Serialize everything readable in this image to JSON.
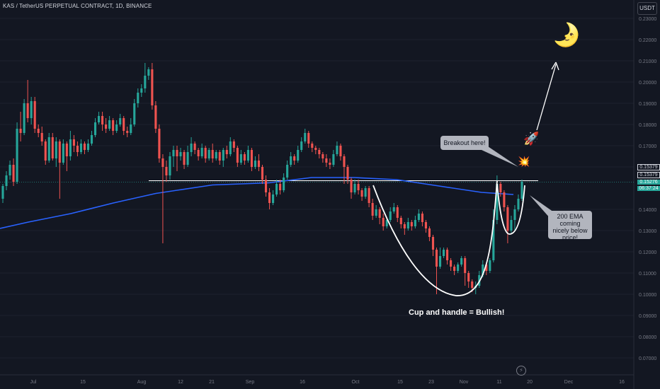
{
  "header": {
    "symbol_line": "KAS / TetherUS PERPETUAL CONTRACT, 1D, BINANCE",
    "currency": "USDT"
  },
  "chart_data": {
    "type": "candlestick",
    "x_axis_labels": [
      "Jul",
      "15",
      "Aug",
      "12",
      "21",
      "Sep",
      "16",
      "Oct",
      "15",
      "23",
      "Nov",
      "11",
      "20",
      "Dec",
      "16"
    ],
    "y_tick_labels": [
      "0.23000",
      "0.22000",
      "0.21000",
      "0.20000",
      "0.19000",
      "0.18000",
      "0.17000",
      "0.16000",
      "0.14000",
      "0.13000",
      "0.12000",
      "0.11000",
      "0.10000",
      "0.09000",
      "0.08000",
      "0.07000"
    ],
    "ylim": [
      0.066,
      0.24
    ],
    "price_labels": {
      "line_high": "0.15379",
      "line_low": "0.15379",
      "last_price": "0.15276",
      "countdown": "06:37:24"
    },
    "horizontal_level": 0.1535,
    "candles": [
      [
        0.145,
        0.151,
        0.143,
        0.152
      ],
      [
        0.151,
        0.156,
        0.149,
        0.158
      ],
      [
        0.156,
        0.161,
        0.154,
        0.163
      ],
      [
        0.161,
        0.153,
        0.151,
        0.164
      ],
      [
        0.153,
        0.178,
        0.152,
        0.181
      ],
      [
        0.178,
        0.176,
        0.172,
        0.186
      ],
      [
        0.176,
        0.19,
        0.175,
        0.192
      ],
      [
        0.19,
        0.183,
        0.181,
        0.201
      ],
      [
        0.183,
        0.191,
        0.18,
        0.193
      ],
      [
        0.191,
        0.178,
        0.176,
        0.193
      ],
      [
        0.178,
        0.176,
        0.174,
        0.18
      ],
      [
        0.176,
        0.172,
        0.17,
        0.179
      ],
      [
        0.172,
        0.163,
        0.161,
        0.173
      ],
      [
        0.163,
        0.174,
        0.162,
        0.176
      ],
      [
        0.174,
        0.164,
        0.163,
        0.176
      ],
      [
        0.164,
        0.172,
        0.16,
        0.174
      ],
      [
        0.172,
        0.162,
        0.145,
        0.173
      ],
      [
        0.162,
        0.171,
        0.161,
        0.173
      ],
      [
        0.171,
        0.165,
        0.158,
        0.172
      ],
      [
        0.165,
        0.173,
        0.163,
        0.177
      ],
      [
        0.173,
        0.17,
        0.167,
        0.175
      ],
      [
        0.17,
        0.167,
        0.165,
        0.172
      ],
      [
        0.167,
        0.171,
        0.166,
        0.173
      ],
      [
        0.171,
        0.168,
        0.166,
        0.172
      ],
      [
        0.168,
        0.171,
        0.167,
        0.173
      ],
      [
        0.171,
        0.175,
        0.17,
        0.177
      ],
      [
        0.175,
        0.181,
        0.174,
        0.183
      ],
      [
        0.181,
        0.184,
        0.18,
        0.186
      ],
      [
        0.184,
        0.18,
        0.177,
        0.186
      ],
      [
        0.18,
        0.178,
        0.176,
        0.183
      ],
      [
        0.178,
        0.182,
        0.177,
        0.184
      ],
      [
        0.182,
        0.177,
        0.175,
        0.183
      ],
      [
        0.177,
        0.18,
        0.176,
        0.182
      ],
      [
        0.18,
        0.183,
        0.179,
        0.185
      ],
      [
        0.183,
        0.177,
        0.175,
        0.184
      ],
      [
        0.177,
        0.176,
        0.174,
        0.179
      ],
      [
        0.176,
        0.18,
        0.175,
        0.183
      ],
      [
        0.18,
        0.19,
        0.179,
        0.192
      ],
      [
        0.19,
        0.195,
        0.188,
        0.197
      ],
      [
        0.195,
        0.197,
        0.193,
        0.199
      ],
      [
        0.197,
        0.203,
        0.195,
        0.209
      ],
      [
        0.203,
        0.206,
        0.201,
        0.207
      ],
      [
        0.206,
        0.189,
        0.187,
        0.209
      ],
      [
        0.189,
        0.178,
        0.176,
        0.191
      ],
      [
        0.178,
        0.164,
        0.162,
        0.18
      ],
      [
        0.164,
        0.16,
        0.124,
        0.166
      ],
      [
        0.16,
        0.156,
        0.153,
        0.163
      ],
      [
        0.156,
        0.165,
        0.154,
        0.167
      ],
      [
        0.165,
        0.168,
        0.16,
        0.17
      ],
      [
        0.168,
        0.165,
        0.158,
        0.17
      ],
      [
        0.165,
        0.167,
        0.163,
        0.169
      ],
      [
        0.167,
        0.161,
        0.159,
        0.168
      ],
      [
        0.161,
        0.167,
        0.16,
        0.17
      ],
      [
        0.167,
        0.171,
        0.165,
        0.174
      ],
      [
        0.171,
        0.168,
        0.166,
        0.172
      ],
      [
        0.168,
        0.165,
        0.163,
        0.169
      ],
      [
        0.165,
        0.169,
        0.164,
        0.171
      ],
      [
        0.169,
        0.164,
        0.162,
        0.17
      ],
      [
        0.164,
        0.168,
        0.163,
        0.169
      ],
      [
        0.168,
        0.164,
        0.162,
        0.171
      ],
      [
        0.164,
        0.167,
        0.163,
        0.168
      ],
      [
        0.167,
        0.163,
        0.161,
        0.168
      ],
      [
        0.163,
        0.168,
        0.16,
        0.169
      ],
      [
        0.168,
        0.166,
        0.164,
        0.17
      ],
      [
        0.166,
        0.172,
        0.165,
        0.174
      ],
      [
        0.172,
        0.169,
        0.167,
        0.173
      ],
      [
        0.169,
        0.162,
        0.16,
        0.17
      ],
      [
        0.162,
        0.166,
        0.161,
        0.168
      ],
      [
        0.166,
        0.163,
        0.161,
        0.167
      ],
      [
        0.163,
        0.168,
        0.162,
        0.17
      ],
      [
        0.168,
        0.16,
        0.158,
        0.169
      ],
      [
        0.16,
        0.163,
        0.159,
        0.165
      ],
      [
        0.163,
        0.16,
        0.158,
        0.166
      ],
      [
        0.16,
        0.154,
        0.152,
        0.161
      ],
      [
        0.154,
        0.148,
        0.146,
        0.156
      ],
      [
        0.148,
        0.143,
        0.14,
        0.15
      ],
      [
        0.143,
        0.147,
        0.142,
        0.149
      ],
      [
        0.147,
        0.152,
        0.146,
        0.154
      ],
      [
        0.152,
        0.149,
        0.147,
        0.154
      ],
      [
        0.149,
        0.155,
        0.148,
        0.157
      ],
      [
        0.155,
        0.161,
        0.154,
        0.163
      ],
      [
        0.161,
        0.165,
        0.16,
        0.167
      ],
      [
        0.165,
        0.163,
        0.161,
        0.166
      ],
      [
        0.163,
        0.168,
        0.162,
        0.17
      ],
      [
        0.168,
        0.172,
        0.167,
        0.174
      ],
      [
        0.172,
        0.176,
        0.171,
        0.178
      ],
      [
        0.176,
        0.171,
        0.169,
        0.177
      ],
      [
        0.171,
        0.169,
        0.167,
        0.172
      ],
      [
        0.169,
        0.168,
        0.166,
        0.17
      ],
      [
        0.168,
        0.166,
        0.164,
        0.169
      ],
      [
        0.166,
        0.164,
        0.162,
        0.167
      ],
      [
        0.164,
        0.162,
        0.16,
        0.166
      ],
      [
        0.162,
        0.161,
        0.159,
        0.164
      ],
      [
        0.161,
        0.166,
        0.16,
        0.168
      ],
      [
        0.166,
        0.17,
        0.165,
        0.172
      ],
      [
        0.17,
        0.165,
        0.163,
        0.171
      ],
      [
        0.165,
        0.16,
        0.152,
        0.166
      ],
      [
        0.16,
        0.154,
        0.152,
        0.161
      ],
      [
        0.154,
        0.148,
        0.145,
        0.155
      ],
      [
        0.148,
        0.152,
        0.147,
        0.154
      ],
      [
        0.152,
        0.149,
        0.147,
        0.154
      ],
      [
        0.149,
        0.146,
        0.144,
        0.15
      ],
      [
        0.146,
        0.15,
        0.145,
        0.151
      ],
      [
        0.15,
        0.143,
        0.141,
        0.151
      ],
      [
        0.143,
        0.137,
        0.135,
        0.145
      ],
      [
        0.137,
        0.14,
        0.136,
        0.142
      ],
      [
        0.14,
        0.136,
        0.133,
        0.141
      ],
      [
        0.136,
        0.132,
        0.13,
        0.138
      ],
      [
        0.132,
        0.135,
        0.131,
        0.136
      ],
      [
        0.135,
        0.139,
        0.134,
        0.141
      ],
      [
        0.139,
        0.141,
        0.138,
        0.143
      ],
      [
        0.141,
        0.136,
        0.134,
        0.142
      ],
      [
        0.136,
        0.133,
        0.131,
        0.137
      ],
      [
        0.133,
        0.131,
        0.128,
        0.134
      ],
      [
        0.131,
        0.134,
        0.13,
        0.136
      ],
      [
        0.134,
        0.132,
        0.13,
        0.135
      ],
      [
        0.132,
        0.135,
        0.131,
        0.137
      ],
      [
        0.135,
        0.138,
        0.134,
        0.14
      ],
      [
        0.138,
        0.134,
        0.132,
        0.139
      ],
      [
        0.134,
        0.131,
        0.129,
        0.135
      ],
      [
        0.131,
        0.127,
        0.125,
        0.132
      ],
      [
        0.127,
        0.121,
        0.118,
        0.128
      ],
      [
        0.121,
        0.113,
        0.1,
        0.122
      ],
      [
        0.113,
        0.118,
        0.112,
        0.122
      ],
      [
        0.118,
        0.121,
        0.117,
        0.122
      ],
      [
        0.121,
        0.116,
        0.114,
        0.122
      ],
      [
        0.116,
        0.113,
        0.111,
        0.117
      ],
      [
        0.113,
        0.111,
        0.109,
        0.114
      ],
      [
        0.111,
        0.114,
        0.11,
        0.115
      ],
      [
        0.114,
        0.117,
        0.113,
        0.118
      ],
      [
        0.117,
        0.11,
        0.104,
        0.118
      ],
      [
        0.11,
        0.106,
        0.103,
        0.111
      ],
      [
        0.106,
        0.103,
        0.101,
        0.107
      ],
      [
        0.103,
        0.104,
        0.1,
        0.106
      ],
      [
        0.104,
        0.109,
        0.103,
        0.111
      ],
      [
        0.109,
        0.114,
        0.108,
        0.116
      ],
      [
        0.114,
        0.111,
        0.109,
        0.115
      ],
      [
        0.111,
        0.116,
        0.11,
        0.117
      ],
      [
        0.116,
        0.135,
        0.115,
        0.14
      ],
      [
        0.135,
        0.152,
        0.133,
        0.156
      ],
      [
        0.152,
        0.148,
        0.146,
        0.153
      ],
      [
        0.148,
        0.141,
        0.139,
        0.149
      ],
      [
        0.141,
        0.13,
        0.124,
        0.142
      ],
      [
        0.13,
        0.135,
        0.129,
        0.137
      ],
      [
        0.135,
        0.14,
        0.13,
        0.142
      ],
      [
        0.14,
        0.145,
        0.139,
        0.147
      ],
      [
        0.145,
        0.153,
        0.144,
        0.154
      ]
    ],
    "ema": {
      "name": "200 EMA",
      "points": [
        [
          0,
          0.131
        ],
        [
          40,
          0.134
        ],
        [
          100,
          0.138
        ],
        [
          160,
          0.143
        ],
        [
          220,
          0.1475
        ],
        [
          300,
          0.1515
        ],
        [
          380,
          0.1525
        ],
        [
          440,
          0.155
        ],
        [
          500,
          0.155
        ],
        [
          560,
          0.154
        ],
        [
          620,
          0.151
        ],
        [
          680,
          0.148
        ],
        [
          725,
          0.147
        ]
      ]
    }
  },
  "annotations": {
    "breakout": "Breakout here!",
    "ema_note": "200 EMA coming nicely below price!",
    "cup_handle": "Cup and handle = Bullish!",
    "rocket_emoji": "🚀",
    "explosion_emoji": "💥",
    "moon_emoji": "🌛",
    "lightning_icon": "⚡"
  },
  "colors": {
    "background": "#131722",
    "up": "#26a69a",
    "down": "#ef5350",
    "ema": "#2962ff",
    "grid": "#1e222d",
    "axis_text": "#787b86",
    "last_price_bg": "#26a69a"
  }
}
